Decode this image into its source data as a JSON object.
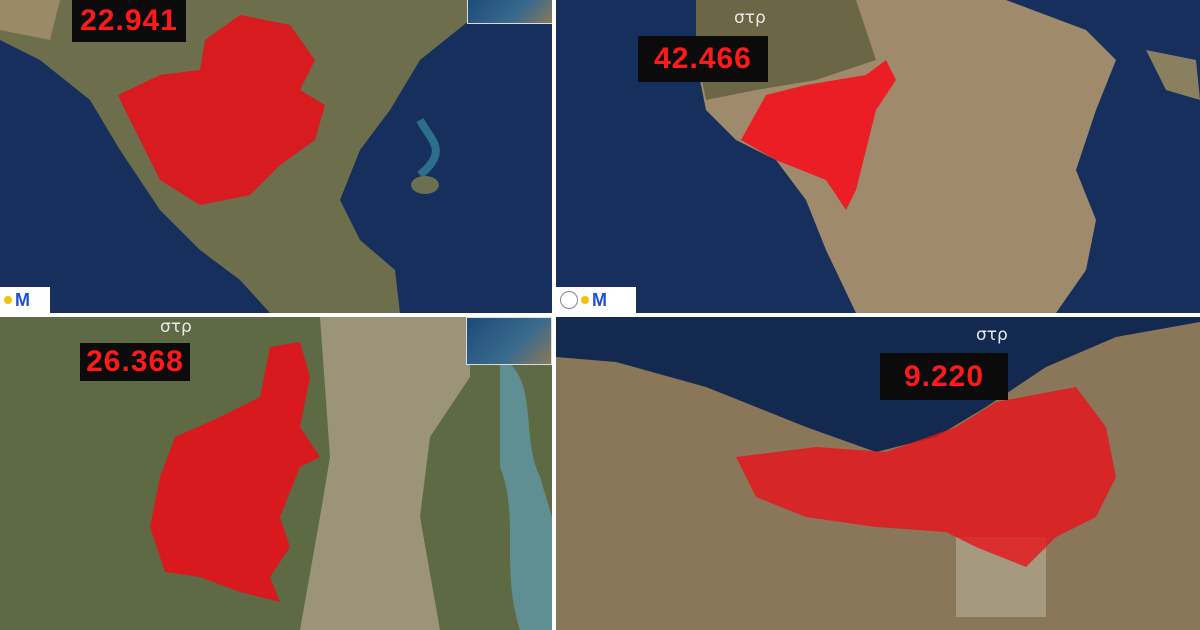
{
  "panels": [
    {
      "area": "22.941",
      "unit": ""
    },
    {
      "area": "42.466",
      "unit": "στρ"
    },
    {
      "area": "26.368",
      "unit": "στρ"
    },
    {
      "area": "9.220",
      "unit": "στρ"
    }
  ],
  "colors": {
    "burn": "#e8131b",
    "sea": "#13294f",
    "label_bg": "#0b0b0b",
    "label_text": "#ff1a1a"
  },
  "icons": [
    "logo-m",
    "seal-icon",
    "inset-map"
  ]
}
